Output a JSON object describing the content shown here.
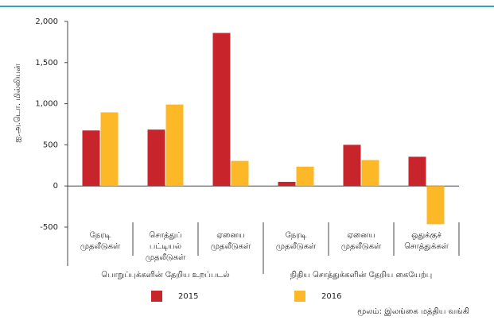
{
  "chart_data": {
    "type": "bar",
    "y_label": "ஐ.அ.டொ. மில்லியன்",
    "categories": [
      [
        "நேரடி",
        "முதலீடுகள்"
      ],
      [
        "சொத்துப்",
        "பட்டியல்",
        "முதலீடுகள்"
      ],
      [
        "ஏனைய",
        "முதலீடுகள்"
      ],
      [
        "நேரடி",
        "முதலீடுகள்"
      ],
      [
        "ஏனைய",
        "முதலீடுகள்"
      ],
      [
        "ஒதுக்குச்",
        "சொத்துக்கள்"
      ]
    ],
    "groups": [
      "பொறுப்புக்களின் தேறிய உறப்படல்",
      "நிதிய சொத்துக்களின் தேறிய கையேற்பு"
    ],
    "series": [
      {
        "name": "2015",
        "color": "#c8242c",
        "values": [
          675,
          685,
          1860,
          50,
          500,
          355
        ]
      },
      {
        "name": "2016",
        "color": "#fdb827",
        "values": [
          895,
          990,
          305,
          235,
          315,
          -465
        ]
      }
    ],
    "ylim": [
      -500,
      2000
    ],
    "yticks": [
      -500,
      0,
      500,
      {
        "value": 1000,
        "label": "1,000"
      },
      {
        "value": 1500,
        "label": "1,500"
      },
      {
        "value": 2000,
        "label": "2,000"
      }
    ],
    "source": "மூலம்: இலங்கை மத்திய வங்கி"
  }
}
